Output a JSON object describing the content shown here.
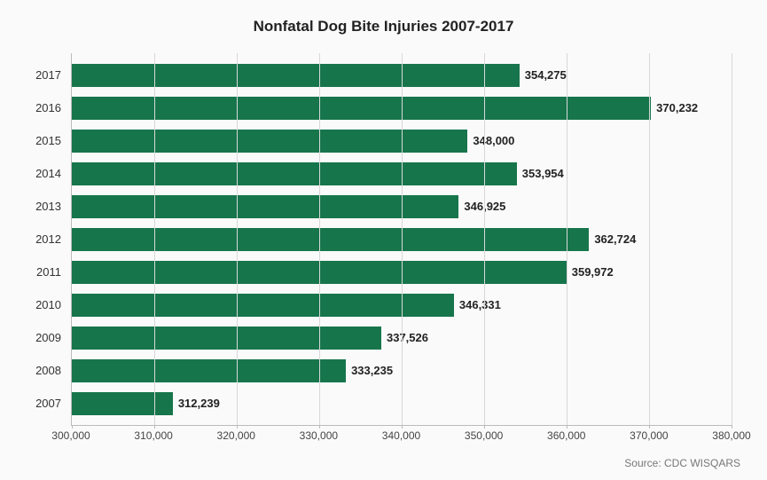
{
  "chart": {
    "type": "bar-horizontal",
    "title": "Nonfatal Dog Bite Injuries 2007-2017",
    "background_color": "#fafafa",
    "bar_color": "#17754c",
    "grid_color": "#d8d8d8",
    "axis_color": "#bbbbbb",
    "text_color": "#222222",
    "title_fontsize": 17,
    "label_fontsize": 13,
    "tick_fontsize": 12,
    "xlim": [
      300000,
      380000
    ],
    "xtick_step": 10000,
    "xticks": [
      "300,000",
      "310,000",
      "320,000",
      "330,000",
      "340,000",
      "350,000",
      "360,000",
      "370,000",
      "380,000"
    ],
    "xtick_values": [
      300000,
      310000,
      320000,
      330000,
      340000,
      350000,
      360000,
      370000,
      380000
    ],
    "categories": [
      "2017",
      "2016",
      "2015",
      "2014",
      "2013",
      "2012",
      "2011",
      "2010",
      "2009",
      "2008",
      "2007"
    ],
    "values": [
      354275,
      370232,
      348000,
      353954,
      346925,
      362724,
      359972,
      346331,
      337526,
      333235,
      312239
    ],
    "value_labels": [
      "354,275",
      "370,232",
      "348,000",
      "353,954",
      "346,925",
      "362,724",
      "359,972",
      "346,331",
      "337,526",
      "333,235",
      "312,239"
    ],
    "source": "Source: CDC WISQARS"
  }
}
